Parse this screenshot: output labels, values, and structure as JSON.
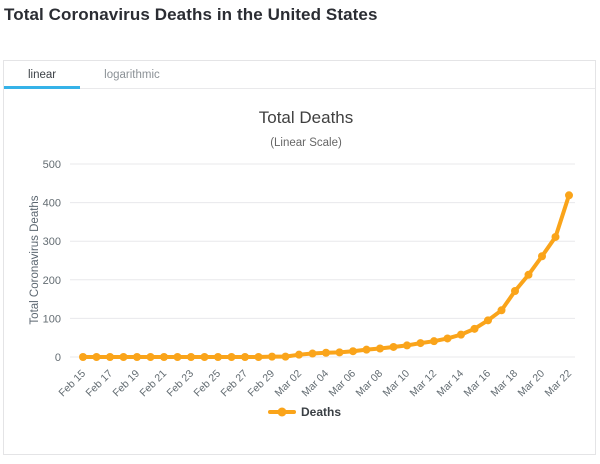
{
  "page": {
    "title": "Total Coronavirus Deaths in the United States"
  },
  "tabs": [
    {
      "label": "linear",
      "active": true
    },
    {
      "label": "logarithmic",
      "active": false
    }
  ],
  "colors": {
    "series_orange": "#faa41a",
    "tab_active_underline": "#35b2e8",
    "grid": "#e8e8eb",
    "axis_text": "#636c72",
    "title_text": "#404040",
    "subtitle_text": "#666666",
    "legend_text": "#3a3f44"
  },
  "chart_data": {
    "type": "line",
    "title": "Total Deaths",
    "subtitle": "(Linear Scale)",
    "xlabel": "",
    "ylabel": "Total Coronavirus Deaths",
    "ylim": [
      0,
      500
    ],
    "yticks": [
      0,
      100,
      200,
      300,
      400,
      500
    ],
    "grid": true,
    "legend_position": "bottom",
    "x_tick_every": 2,
    "x": [
      "Feb 15",
      "Feb 16",
      "Feb 17",
      "Feb 18",
      "Feb 19",
      "Feb 20",
      "Feb 21",
      "Feb 22",
      "Feb 23",
      "Feb 24",
      "Feb 25",
      "Feb 26",
      "Feb 27",
      "Feb 28",
      "Feb 29",
      "Mar 01",
      "Mar 02",
      "Mar 03",
      "Mar 04",
      "Mar 05",
      "Mar 06",
      "Mar 07",
      "Mar 08",
      "Mar 09",
      "Mar 10",
      "Mar 11",
      "Mar 12",
      "Mar 13",
      "Mar 14",
      "Mar 15",
      "Mar 16",
      "Mar 17",
      "Mar 18",
      "Mar 19",
      "Mar 20",
      "Mar 21",
      "Mar 22"
    ],
    "series": [
      {
        "name": "Deaths",
        "color": "#faa41a",
        "values": [
          0,
          0,
          0,
          0,
          0,
          0,
          0,
          0,
          0,
          0,
          0,
          0,
          0,
          0,
          1,
          1,
          6,
          9,
          11,
          12,
          15,
          19,
          22,
          26,
          30,
          36,
          41,
          48,
          58,
          73,
          95,
          121,
          171,
          213,
          261,
          311,
          419
        ]
      }
    ]
  }
}
